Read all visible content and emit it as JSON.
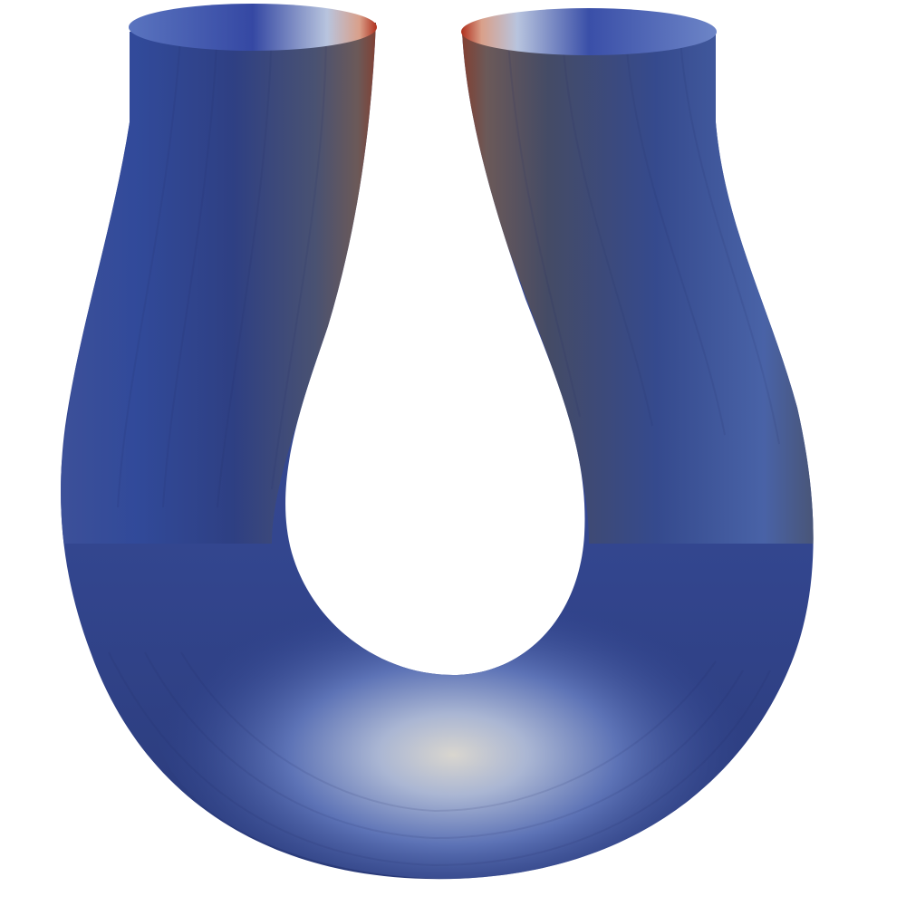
{
  "render": {
    "background": "#ffffff",
    "colormap": [
      "#3b4cc0",
      "#dddddd",
      "#b40426"
    ],
    "object": "u-shaped-tube"
  }
}
